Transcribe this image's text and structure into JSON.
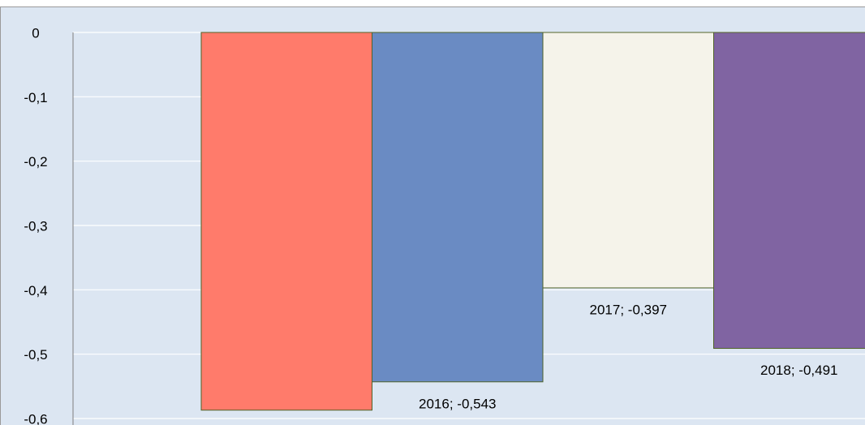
{
  "chart_data": {
    "type": "bar",
    "values": [
      -0.587,
      -0.543,
      -0.397,
      -0.491
    ],
    "value_labels": [
      null,
      "2016; -0,543",
      "2017; -0,397",
      "2018; -0,491"
    ],
    "colors": [
      "#ff7b6b",
      "#6a8bc3",
      "#f5f3ea",
      "#8064a2"
    ],
    "ylim": [
      -0.6,
      0
    ],
    "yticks": [
      0,
      {
        "value": -0.1,
        "label": "-0,1"
      },
      {
        "value": -0.2,
        "label": "-0,2"
      },
      {
        "value": -0.3,
        "label": "-0,3"
      },
      {
        "value": -0.4,
        "label": "-0,4"
      },
      {
        "value": -0.5,
        "label": "-0,5"
      },
      {
        "value": -0.6,
        "label": "-0,6"
      }
    ],
    "grid": true
  }
}
